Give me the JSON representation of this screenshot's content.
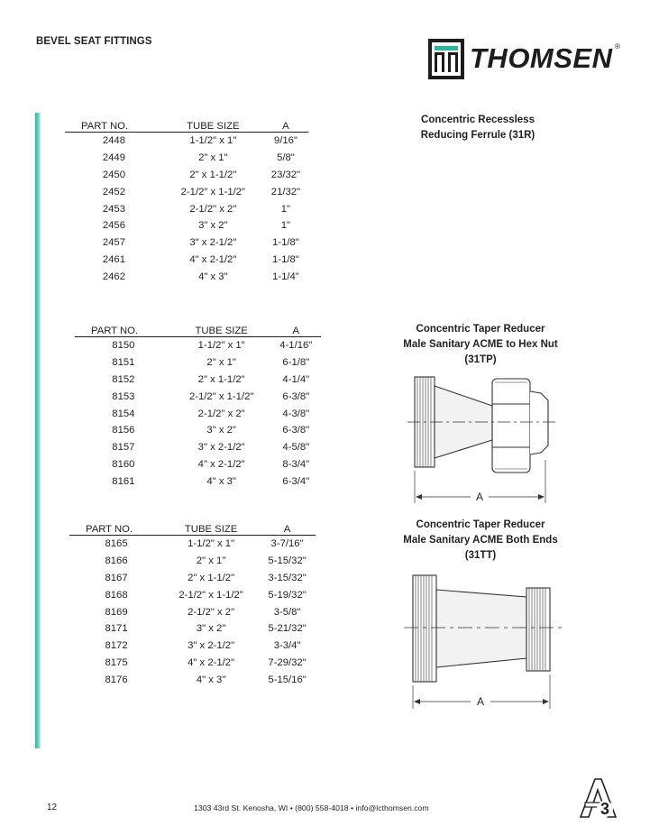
{
  "header": {
    "title": "BEVEL SEAT FITTINGS"
  },
  "logo": {
    "text": "THOMSEN",
    "reg": "®"
  },
  "table1": {
    "headers": [
      "PART NO.",
      "TUBE SIZE",
      "A"
    ],
    "rows": [
      [
        "2448",
        "1-1/2\" x 1\"",
        "9/16\""
      ],
      [
        "2449",
        "2\" x 1\"",
        "5/8\""
      ],
      [
        "2450",
        "2\" x 1-1/2\"",
        "23/32\""
      ],
      [
        "2452",
        "2-1/2\" x 1-1/2\"",
        "21/32\""
      ],
      [
        "2453",
        "2-1/2\" x 2\"",
        "1\""
      ],
      [
        "2456",
        "3\" x 2\"",
        "1\""
      ],
      [
        "2457",
        "3\" x 2-1/2\"",
        "1-1/8\""
      ],
      [
        "2461",
        "4\" x 2-1/2\"",
        "1-1/8\""
      ],
      [
        "2462",
        "4\" x 3\"",
        "1-1/4\""
      ]
    ]
  },
  "table2": {
    "headers": [
      "PART NO.",
      "TUBE SIZE",
      "A"
    ],
    "rows": [
      [
        "8150",
        "1-1/2\" x 1\"",
        "4-1/16\""
      ],
      [
        "8151",
        "2\" x 1\"",
        "6-1/8\""
      ],
      [
        "8152",
        "2\" x 1-1/2\"",
        "4-1/4\""
      ],
      [
        "8153",
        "2-1/2\" x 1-1/2\"",
        "6-3/8\""
      ],
      [
        "8154",
        "2-1/2\" x 2\"",
        "4-3/8\""
      ],
      [
        "8156",
        "3\" x 2\"",
        "6-3/8\""
      ],
      [
        "8157",
        "3\" x 2-1/2\"",
        "4-5/8\""
      ],
      [
        "8160",
        "4\" x 2-1/2\"",
        "8-3/4\""
      ],
      [
        "8161",
        "4\" x 3\"",
        "6-3/4\""
      ]
    ]
  },
  "table3": {
    "headers": [
      "PART NO.",
      "TUBE SIZE",
      "A"
    ],
    "rows": [
      [
        "8165",
        "1-1/2\" x 1\"",
        "3-7/16\""
      ],
      [
        "8166",
        "2\" x 1\"",
        "5-15/32\""
      ],
      [
        "8167",
        "2\" x 1-1/2\"",
        "3-15/32\""
      ],
      [
        "8168",
        "2-1/2\" x 1-1/2\"",
        "5-19/32\""
      ],
      [
        "8169",
        "2-1/2\" x 2\"",
        "3-5/8\""
      ],
      [
        "8171",
        "3\" x 2\"",
        "5-21/32\""
      ],
      [
        "8172",
        "3\" x 2-1/2\"",
        "3-3/4\""
      ],
      [
        "8175",
        "4\" x 2-1/2\"",
        "7-29/32\""
      ],
      [
        "8176",
        "4\" x 3\"",
        "5-15/16\""
      ]
    ]
  },
  "captions": {
    "c1": [
      "Concentric Recessless",
      "Reducing Ferrule (31R)"
    ],
    "c2": [
      "Concentric Taper Reducer",
      "Male Sanitary ACME to Hex Nut",
      "(31TP)"
    ],
    "c3": [
      "Concentric Taper Reducer",
      "Male Sanitary ACME Both Ends",
      "(31TT)"
    ]
  },
  "diagrams": {
    "dimension_label": "A"
  },
  "footer": {
    "page_number": "12",
    "address": "1303 43rd St. Kenosha, WI • (800) 558-4018 • info@lcthomsen.com",
    "badge": "3"
  }
}
